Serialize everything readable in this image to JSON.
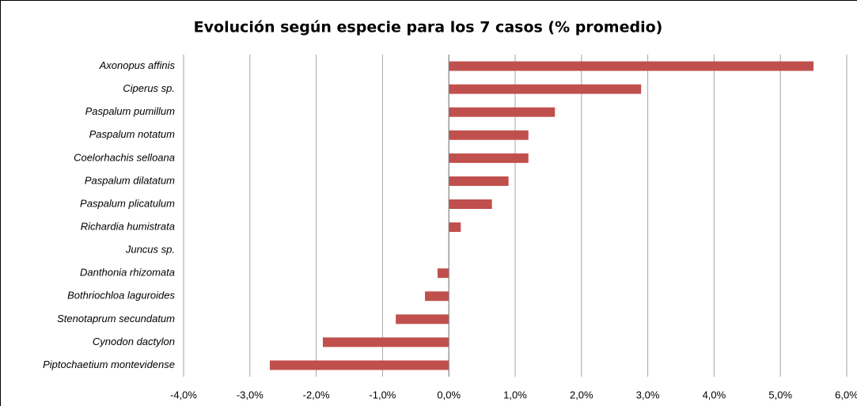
{
  "chart_data": {
    "type": "bar",
    "orientation": "horizontal",
    "title": "Evolución según especie para los 7 casos (% promedio)",
    "categories": [
      "Axonopus affinis",
      "Ciperus sp.",
      "Paspalum pumillum",
      "Paspalum notatum",
      "Coelorhachis selloana",
      "Paspalum dilatatum",
      "Paspalum plicatulum",
      "Richardia humistrata",
      "Juncus sp.",
      "Danthonia rhizomata",
      "Bothriochloa laguroides",
      "Stenotaprum secundatum",
      "Cynodon dactylon",
      "Piptochaetium montevidense"
    ],
    "values": [
      5.5,
      2.9,
      1.6,
      1.2,
      1.2,
      0.9,
      0.65,
      0.18,
      0,
      -0.17,
      -0.36,
      -0.8,
      -1.9,
      -2.7
    ],
    "color": "#c0504d",
    "xlim": [
      -4,
      6
    ],
    "xticks": [
      {
        "value": -4,
        "label": "-4,0%"
      },
      {
        "value": -3,
        "label": "-3,0%"
      },
      {
        "value": -2,
        "label": "-2,0%"
      },
      {
        "value": -1,
        "label": "-1,0%"
      },
      {
        "value": 0,
        "label": "0,0%"
      },
      {
        "value": 1,
        "label": "1,0%"
      },
      {
        "value": 2,
        "label": "2,0%"
      },
      {
        "value": 3,
        "label": "3,0%"
      },
      {
        "value": 4,
        "label": "4,0%"
      },
      {
        "value": 5,
        "label": "5,0%"
      },
      {
        "value": 6,
        "label": "6,0%"
      }
    ],
    "grid": true
  }
}
